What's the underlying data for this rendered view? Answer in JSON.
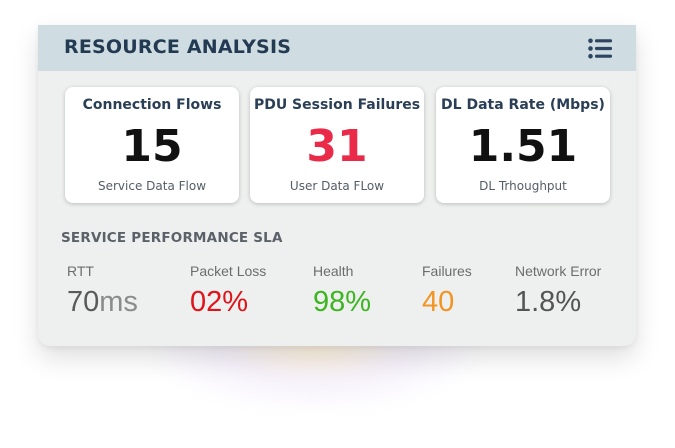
{
  "header": {
    "title": "RESOURCE ANALYSIS",
    "menu_icon": "list-icon"
  },
  "kpis": [
    {
      "title": "Connection Flows",
      "value": "15",
      "subtitle": "Service Data Flow",
      "color": "#111111"
    },
    {
      "title": "PDU Session Failures",
      "value": "31",
      "subtitle": "User Data FLow",
      "color": "#ea2a49"
    },
    {
      "title": "DL Data Rate (Mbps)",
      "value": "1.51",
      "subtitle": "DL Trhoughput",
      "color": "#111111"
    }
  ],
  "sla": {
    "title": "SERVICE PERFORMANCE SLA",
    "metrics": [
      {
        "label": "RTT",
        "value": "70",
        "unit": "ms",
        "color": "#5a5a5a"
      },
      {
        "label": "Packet Loss",
        "value": "02%",
        "color": "#e0131b"
      },
      {
        "label": "Health",
        "value": "98%",
        "color": "#3cb521"
      },
      {
        "label": "Failures",
        "value": "40",
        "color": "#f29423"
      },
      {
        "label": "Network Error",
        "value": "1.8%",
        "color": "#555555"
      }
    ]
  }
}
